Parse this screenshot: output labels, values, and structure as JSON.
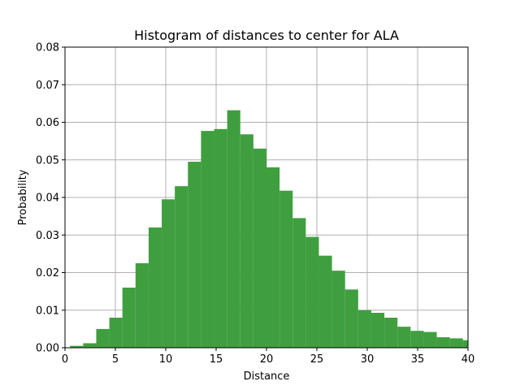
{
  "chart_data": {
    "type": "bar",
    "title": "Histogram of distances to center for ALA",
    "xlabel": "Distance",
    "ylabel": "Probability",
    "xlim": [
      0,
      40
    ],
    "ylim": [
      0,
      0.08
    ],
    "xticks": [
      "0",
      "5",
      "10",
      "15",
      "20",
      "25",
      "30",
      "35",
      "40"
    ],
    "yticks": [
      "0.00",
      "0.01",
      "0.02",
      "0.03",
      "0.04",
      "0.05",
      "0.06",
      "0.07",
      "0.08"
    ],
    "grid": true,
    "bar_color": "#3f9f3f",
    "bins": [
      {
        "x0": 0.5,
        "x1": 1.8,
        "value": 0.0005
      },
      {
        "x0": 1.8,
        "x1": 3.1,
        "value": 0.0012
      },
      {
        "x0": 3.1,
        "x1": 4.4,
        "value": 0.005
      },
      {
        "x0": 4.4,
        "x1": 5.7,
        "value": 0.008
      },
      {
        "x0": 5.7,
        "x1": 7.0,
        "value": 0.016
      },
      {
        "x0": 7.0,
        "x1": 8.3,
        "value": 0.0225
      },
      {
        "x0": 8.3,
        "x1": 9.6,
        "value": 0.032
      },
      {
        "x0": 9.6,
        "x1": 10.9,
        "value": 0.0395
      },
      {
        "x0": 10.9,
        "x1": 12.2,
        "value": 0.043
      },
      {
        "x0": 12.2,
        "x1": 13.5,
        "value": 0.0495
      },
      {
        "x0": 13.5,
        "x1": 14.8,
        "value": 0.0577
      },
      {
        "x0": 14.8,
        "x1": 16.1,
        "value": 0.0582
      },
      {
        "x0": 16.1,
        "x1": 17.4,
        "value": 0.0632
      },
      {
        "x0": 17.4,
        "x1": 18.7,
        "value": 0.0568
      },
      {
        "x0": 18.7,
        "x1": 20.0,
        "value": 0.053
      },
      {
        "x0": 20.0,
        "x1": 21.3,
        "value": 0.048
      },
      {
        "x0": 21.3,
        "x1": 22.6,
        "value": 0.0418
      },
      {
        "x0": 22.6,
        "x1": 23.9,
        "value": 0.0345
      },
      {
        "x0": 23.9,
        "x1": 25.2,
        "value": 0.0295
      },
      {
        "x0": 25.2,
        "x1": 26.5,
        "value": 0.0245
      },
      {
        "x0": 26.5,
        "x1": 27.8,
        "value": 0.0205
      },
      {
        "x0": 27.8,
        "x1": 29.1,
        "value": 0.0155
      },
      {
        "x0": 29.1,
        "x1": 30.4,
        "value": 0.01
      },
      {
        "x0": 30.4,
        "x1": 31.7,
        "value": 0.0093
      },
      {
        "x0": 31.7,
        "x1": 33.0,
        "value": 0.008
      },
      {
        "x0": 33.0,
        "x1": 34.3,
        "value": 0.0056
      },
      {
        "x0": 34.3,
        "x1": 35.6,
        "value": 0.0045
      },
      {
        "x0": 35.6,
        "x1": 36.9,
        "value": 0.0042
      },
      {
        "x0": 36.9,
        "x1": 38.2,
        "value": 0.0028
      },
      {
        "x0": 38.2,
        "x1": 39.5,
        "value": 0.0025
      },
      {
        "x0": 39.5,
        "x1": 40.0,
        "value": 0.002
      }
    ]
  }
}
